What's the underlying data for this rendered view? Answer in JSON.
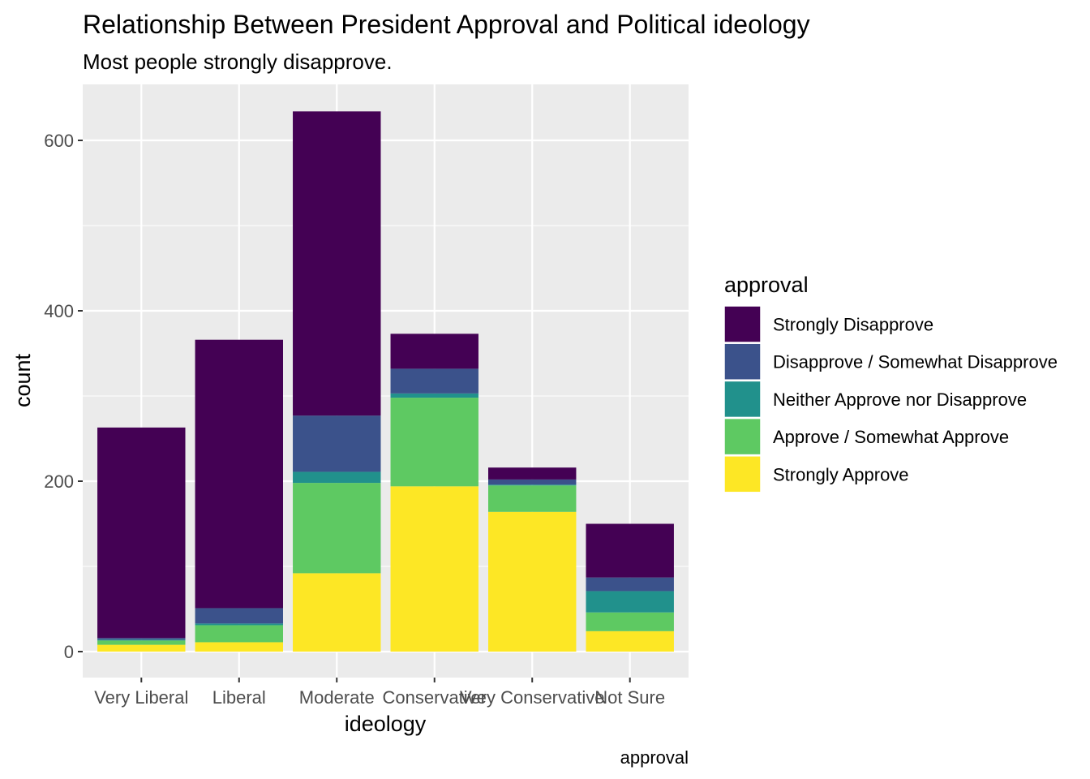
{
  "chart_data": {
    "type": "bar",
    "stacked": true,
    "title": "Relationship Between President Approval and Political ideology",
    "subtitle": "Most people strongly disapprove.",
    "xlabel": "ideology",
    "ylabel": "count",
    "caption": "approval",
    "categories": [
      "Very Liberal",
      "Liberal",
      "Moderate",
      "Conservative",
      "Very Conservative",
      "Not Sure"
    ],
    "ylim": [
      0,
      660
    ],
    "yticks": [
      0,
      200,
      400,
      600
    ],
    "ytick_labels": [
      "0",
      "200",
      "400",
      "600"
    ],
    "grid": true,
    "legend": {
      "title": "approval",
      "position": "right"
    },
    "series": [
      {
        "name": "Strongly Approve",
        "color": "#FDE725",
        "values": [
          8,
          11,
          92,
          194,
          164,
          24
        ]
      },
      {
        "name": "Approve / Somewhat Approve",
        "color": "#5EC962",
        "values": [
          5,
          20,
          106,
          104,
          31,
          22
        ]
      },
      {
        "name": "Neither Approve nor Disapprove",
        "color": "#21918C",
        "values": [
          1,
          2,
          13,
          5,
          1,
          25
        ]
      },
      {
        "name": "Disapprove / Somewhat Disapprove",
        "color": "#3B528B",
        "values": [
          2,
          18,
          66,
          29,
          6,
          16
        ]
      },
      {
        "name": "Strongly Disapprove",
        "color": "#440154",
        "values": [
          247,
          315,
          357,
          41,
          14,
          63
        ]
      }
    ],
    "legend_order": [
      "Strongly Disapprove",
      "Disapprove / Somewhat Disapprove",
      "Neither Approve nor Disapprove",
      "Approve / Somewhat Approve",
      "Strongly Approve"
    ]
  },
  "colors": {
    "panel_background": "#EBEBEB",
    "grid_major": "#FFFFFF",
    "tick_text": "#4D4D4D"
  }
}
